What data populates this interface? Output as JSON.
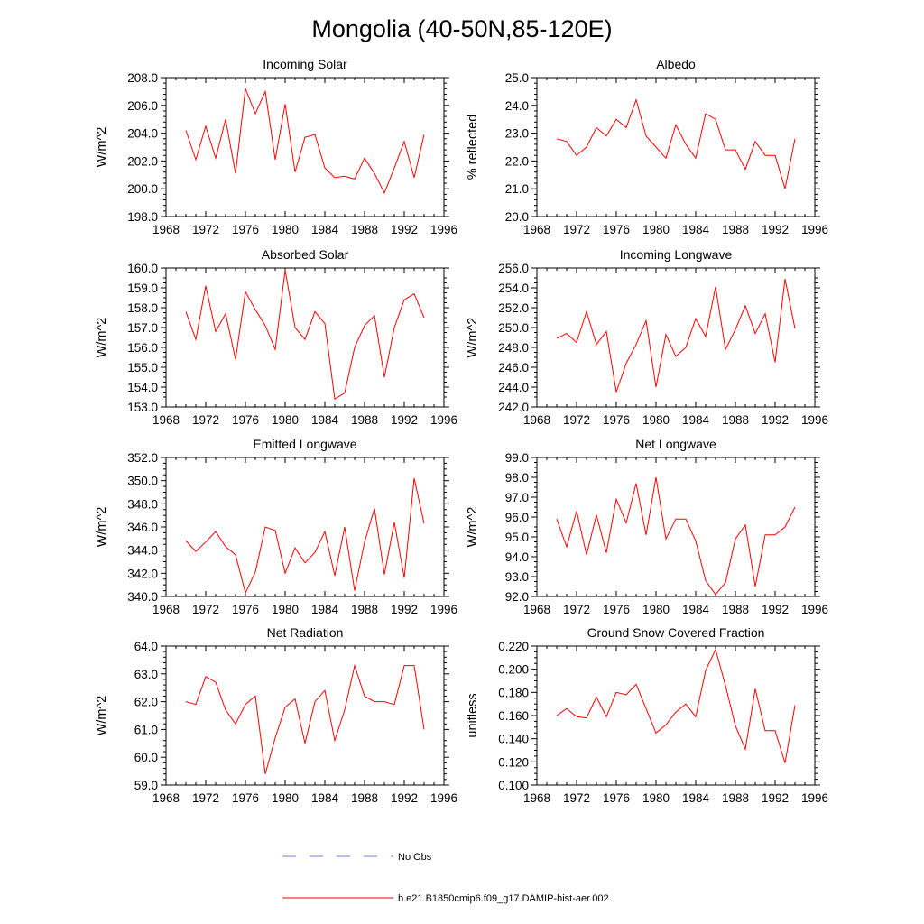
{
  "title": "Mongolia (40-50N,85-120E)",
  "legend": [
    {
      "label": "No Obs",
      "color": "#6f7fd0",
      "dash": true
    },
    {
      "label": "b.e21.B1850cmip6.f09_g17.DAMIP-hist-aer.002",
      "color": "#ff0000",
      "dash": false
    }
  ],
  "chart_data": [
    {
      "type": "line",
      "title": "Incoming Solar",
      "ylabel": "W/m^2",
      "xlim": [
        1968,
        1996
      ],
      "xticks": [
        1968,
        1972,
        1976,
        1980,
        1984,
        1988,
        1992,
        1996
      ],
      "ylim": [
        198,
        208
      ],
      "yticks": [
        "198.0",
        "200.0",
        "202.0",
        "204.0",
        "206.0",
        "208.0"
      ],
      "x": [
        1970,
        1971,
        1972,
        1973,
        1974,
        1975,
        1976,
        1977,
        1978,
        1979,
        1980,
        1981,
        1982,
        1983,
        1984,
        1985,
        1986,
        1987,
        1988,
        1989,
        1990,
        1991,
        1992,
        1993,
        1994
      ],
      "series": [
        {
          "values": [
            204.2,
            202.1,
            204.5,
            202.2,
            205.0,
            201.1,
            207.2,
            205.4,
            207.0,
            202.1,
            206.1,
            201.2,
            203.7,
            203.9,
            201.5,
            200.8,
            200.9,
            200.7,
            202.2,
            201.1,
            199.7,
            201.5,
            203.4,
            200.8,
            203.9
          ]
        }
      ]
    },
    {
      "type": "line",
      "title": "Albedo",
      "ylabel": "% reflected",
      "xlim": [
        1968,
        1996
      ],
      "xticks": [
        1968,
        1972,
        1976,
        1980,
        1984,
        1988,
        1992,
        1996
      ],
      "ylim": [
        20,
        25
      ],
      "yticks": [
        "20.0",
        "21.0",
        "22.0",
        "23.0",
        "24.0",
        "25.0"
      ],
      "x": [
        1970,
        1971,
        1972,
        1973,
        1974,
        1975,
        1976,
        1977,
        1978,
        1979,
        1980,
        1981,
        1982,
        1983,
        1984,
        1985,
        1986,
        1987,
        1988,
        1989,
        1990,
        1991,
        1992,
        1993,
        1994
      ],
      "series": [
        {
          "values": [
            22.8,
            22.7,
            22.2,
            22.5,
            23.2,
            22.9,
            23.5,
            23.2,
            24.2,
            22.9,
            22.5,
            22.1,
            23.3,
            22.6,
            22.1,
            23.7,
            23.5,
            22.4,
            22.4,
            21.7,
            22.7,
            22.2,
            22.2,
            21.0,
            22.8
          ]
        }
      ]
    },
    {
      "type": "line",
      "title": "Absorbed Solar",
      "ylabel": "W/m^2",
      "xlim": [
        1968,
        1996
      ],
      "xticks": [
        1968,
        1972,
        1976,
        1980,
        1984,
        1988,
        1992,
        1996
      ],
      "ylim": [
        153,
        160
      ],
      "yticks": [
        "153.0",
        "154.0",
        "155.0",
        "156.0",
        "157.0",
        "158.0",
        "159.0",
        "160.0"
      ],
      "x": [
        1970,
        1971,
        1972,
        1973,
        1974,
        1975,
        1976,
        1977,
        1978,
        1979,
        1980,
        1981,
        1982,
        1983,
        1984,
        1985,
        1986,
        1987,
        1988,
        1989,
        1990,
        1991,
        1992,
        1993,
        1994
      ],
      "series": [
        {
          "values": [
            157.8,
            156.4,
            159.1,
            156.8,
            157.7,
            155.4,
            158.8,
            157.9,
            157.1,
            155.9,
            159.9,
            157.0,
            156.4,
            157.8,
            157.2,
            153.4,
            153.7,
            156.0,
            157.1,
            157.6,
            154.5,
            157.0,
            158.4,
            158.7,
            157.5
          ]
        }
      ]
    },
    {
      "type": "line",
      "title": "Incoming Longwave",
      "ylabel": "W/m^2",
      "xlim": [
        1968,
        1996
      ],
      "xticks": [
        1968,
        1972,
        1976,
        1980,
        1984,
        1988,
        1992,
        1996
      ],
      "ylim": [
        242,
        256
      ],
      "yticks": [
        "242.0",
        "244.0",
        "246.0",
        "248.0",
        "250.0",
        "252.0",
        "254.0",
        "256.0"
      ],
      "x": [
        1970,
        1971,
        1972,
        1973,
        1974,
        1975,
        1976,
        1977,
        1978,
        1979,
        1980,
        1981,
        1982,
        1983,
        1984,
        1985,
        1986,
        1987,
        1988,
        1989,
        1990,
        1991,
        1992,
        1993,
        1994
      ],
      "series": [
        {
          "values": [
            248.9,
            249.4,
            248.5,
            251.6,
            248.3,
            249.6,
            243.5,
            246.4,
            248.3,
            250.7,
            244.0,
            249.3,
            247.1,
            248.0,
            250.9,
            249.1,
            254.1,
            247.8,
            249.8,
            252.2,
            249.4,
            251.4,
            246.5,
            254.9,
            249.9
          ]
        }
      ]
    },
    {
      "type": "line",
      "title": "Emitted Longwave",
      "ylabel": "W/m^2",
      "xlim": [
        1968,
        1996
      ],
      "xticks": [
        1968,
        1972,
        1976,
        1980,
        1984,
        1988,
        1992,
        1996
      ],
      "ylim": [
        340,
        352
      ],
      "yticks": [
        "340.0",
        "342.0",
        "344.0",
        "346.0",
        "348.0",
        "350.0",
        "352.0"
      ],
      "x": [
        1970,
        1971,
        1972,
        1973,
        1974,
        1975,
        1976,
        1977,
        1978,
        1979,
        1980,
        1981,
        1982,
        1983,
        1984,
        1985,
        1986,
        1987,
        1988,
        1989,
        1990,
        1991,
        1992,
        1993,
        1994
      ],
      "series": [
        {
          "values": [
            344.8,
            343.9,
            344.7,
            345.6,
            344.3,
            343.6,
            340.3,
            342.1,
            346.0,
            345.7,
            342.0,
            344.2,
            342.9,
            343.8,
            345.6,
            341.8,
            346.0,
            340.5,
            344.7,
            347.6,
            341.9,
            346.4,
            341.6,
            350.2,
            346.3
          ]
        }
      ]
    },
    {
      "type": "line",
      "title": "Net Longwave",
      "ylabel": "W/m^2",
      "xlim": [
        1968,
        1996
      ],
      "xticks": [
        1968,
        1972,
        1976,
        1980,
        1984,
        1988,
        1992,
        1996
      ],
      "ylim": [
        92,
        99
      ],
      "yticks": [
        "92.0",
        "93.0",
        "94.0",
        "95.0",
        "96.0",
        "97.0",
        "98.0",
        "99.0"
      ],
      "x": [
        1970,
        1971,
        1972,
        1973,
        1974,
        1975,
        1976,
        1977,
        1978,
        1979,
        1980,
        1981,
        1982,
        1983,
        1984,
        1985,
        1986,
        1987,
        1988,
        1989,
        1990,
        1991,
        1992,
        1993,
        1994
      ],
      "series": [
        {
          "values": [
            95.9,
            94.5,
            96.3,
            94.1,
            96.1,
            94.2,
            96.9,
            95.7,
            97.7,
            95.1,
            98.0,
            94.9,
            95.9,
            95.9,
            94.8,
            92.8,
            92.1,
            92.7,
            94.9,
            95.6,
            92.5,
            95.1,
            95.1,
            95.5,
            96.5
          ]
        }
      ]
    },
    {
      "type": "line",
      "title": "Net Radiation",
      "ylabel": "W/m^2",
      "xlim": [
        1968,
        1996
      ],
      "xticks": [
        1968,
        1972,
        1976,
        1980,
        1984,
        1988,
        1992,
        1996
      ],
      "ylim": [
        59,
        64
      ],
      "yticks": [
        "59.0",
        "60.0",
        "61.0",
        "62.0",
        "63.0",
        "64.0"
      ],
      "x": [
        1970,
        1971,
        1972,
        1973,
        1974,
        1975,
        1976,
        1977,
        1978,
        1979,
        1980,
        1981,
        1982,
        1983,
        1984,
        1985,
        1986,
        1987,
        1988,
        1989,
        1990,
        1991,
        1992,
        1993,
        1994
      ],
      "series": [
        {
          "values": [
            62.0,
            61.9,
            62.9,
            62.7,
            61.7,
            61.2,
            61.9,
            62.2,
            59.4,
            60.7,
            61.8,
            62.1,
            60.5,
            62.0,
            62.4,
            60.6,
            61.7,
            63.3,
            62.2,
            62.0,
            62.0,
            61.9,
            63.3,
            63.3,
            61.0
          ]
        }
      ]
    },
    {
      "type": "line",
      "title": "Ground Snow Covered Fraction",
      "ylabel": "unitless",
      "xlim": [
        1968,
        1996
      ],
      "xticks": [
        1968,
        1972,
        1976,
        1980,
        1984,
        1988,
        1992,
        1996
      ],
      "ylim": [
        0.1,
        0.22
      ],
      "yticks": [
        "0.100",
        "0.120",
        "0.140",
        "0.160",
        "0.180",
        "0.200",
        "0.220"
      ],
      "x": [
        1970,
        1971,
        1972,
        1973,
        1974,
        1975,
        1976,
        1977,
        1978,
        1979,
        1980,
        1981,
        1982,
        1983,
        1984,
        1985,
        1986,
        1987,
        1988,
        1989,
        1990,
        1991,
        1992,
        1993,
        1994
      ],
      "series": [
        {
          "values": [
            0.16,
            0.166,
            0.159,
            0.158,
            0.176,
            0.159,
            0.18,
            0.178,
            0.187,
            0.166,
            0.145,
            0.152,
            0.163,
            0.17,
            0.159,
            0.199,
            0.217,
            0.186,
            0.151,
            0.131,
            0.183,
            0.147,
            0.147,
            0.119,
            0.169
          ]
        }
      ]
    }
  ]
}
